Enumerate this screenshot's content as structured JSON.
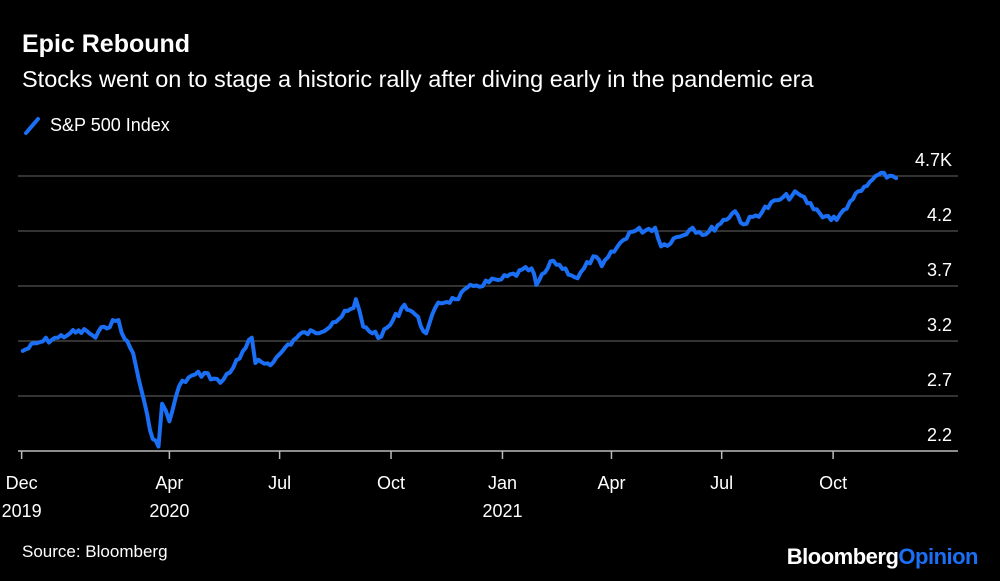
{
  "title": "Epic Rebound",
  "subtitle": "Stocks went on to stage a historic rally after diving early in the pandemic era",
  "source": "Source: Bloomberg",
  "brand": {
    "part1": "Bloomberg",
    "part2": "Opinion"
  },
  "colors": {
    "background": "#000000",
    "series": "#1a6ff5",
    "grid": "#666666"
  },
  "chart_data": {
    "type": "line",
    "title": "Epic Rebound",
    "subtitle": "Stocks went on to stage a historic rally after diving early in the pandemic era",
    "ylim": [
      2.2,
      4.7
    ],
    "y_ticks": [
      {
        "value": 4.7,
        "label": "4.7K"
      },
      {
        "value": 4.2,
        "label": "4.2"
      },
      {
        "value": 3.7,
        "label": "3.7"
      },
      {
        "value": 3.2,
        "label": "3.2"
      },
      {
        "value": 2.7,
        "label": "2.7"
      },
      {
        "value": 2.2,
        "label": "2.2"
      }
    ],
    "x_ticks": [
      {
        "date": "2019-12-01",
        "line1": "Dec",
        "line2": "2019"
      },
      {
        "date": "2020-04-01",
        "line1": "Apr",
        "line2": "2020"
      },
      {
        "date": "2020-07-01",
        "line1": "Jul",
        "line2": ""
      },
      {
        "date": "2020-10-01",
        "line1": "Oct",
        "line2": ""
      },
      {
        "date": "2021-01-01",
        "line1": "Jan",
        "line2": "2021"
      },
      {
        "date": "2021-04-01",
        "line1": "Apr",
        "line2": ""
      },
      {
        "date": "2021-07-01",
        "line1": "Jul",
        "line2": ""
      },
      {
        "date": "2021-10-01",
        "line1": "Oct",
        "line2": ""
      }
    ],
    "grid": true,
    "legend": "top-left",
    "series": [
      {
        "name": "S&P 500 Index",
        "color": "#1a6ff5",
        "points": [
          [
            "2019-12-02",
            3.11
          ],
          [
            "2019-12-16",
            3.19
          ],
          [
            "2019-12-31",
            3.23
          ],
          [
            "2020-01-10",
            3.27
          ],
          [
            "2020-01-24",
            3.29
          ],
          [
            "2020-01-31",
            3.23
          ],
          [
            "2020-02-07",
            3.33
          ],
          [
            "2020-02-19",
            3.39
          ],
          [
            "2020-02-24",
            3.22
          ],
          [
            "2020-03-02",
            3.09
          ],
          [
            "2020-03-09",
            2.75
          ],
          [
            "2020-03-16",
            2.39
          ],
          [
            "2020-03-23",
            2.24
          ],
          [
            "2020-03-26",
            2.63
          ],
          [
            "2020-04-01",
            2.47
          ],
          [
            "2020-04-09",
            2.79
          ],
          [
            "2020-04-17",
            2.87
          ],
          [
            "2020-04-30",
            2.91
          ],
          [
            "2020-05-13",
            2.82
          ],
          [
            "2020-05-29",
            3.04
          ],
          [
            "2020-06-08",
            3.23
          ],
          [
            "2020-06-11",
            3.0
          ],
          [
            "2020-06-26",
            3.01
          ],
          [
            "2020-07-08",
            3.17
          ],
          [
            "2020-07-22",
            3.28
          ],
          [
            "2020-07-31",
            3.27
          ],
          [
            "2020-08-14",
            3.37
          ],
          [
            "2020-08-31",
            3.5
          ],
          [
            "2020-09-02",
            3.58
          ],
          [
            "2020-09-08",
            3.33
          ],
          [
            "2020-09-23",
            3.24
          ],
          [
            "2020-10-12",
            3.53
          ],
          [
            "2020-10-21",
            3.44
          ],
          [
            "2020-10-30",
            3.27
          ],
          [
            "2020-11-09",
            3.55
          ],
          [
            "2020-11-23",
            3.58
          ],
          [
            "2020-12-08",
            3.7
          ],
          [
            "2020-12-31",
            3.76
          ],
          [
            "2021-01-25",
            3.86
          ],
          [
            "2021-01-29",
            3.71
          ],
          [
            "2021-02-12",
            3.93
          ],
          [
            "2021-03-04",
            3.77
          ],
          [
            "2021-03-17",
            3.97
          ],
          [
            "2021-03-24",
            3.88
          ],
          [
            "2021-04-16",
            4.19
          ],
          [
            "2021-05-07",
            4.23
          ],
          [
            "2021-05-12",
            4.06
          ],
          [
            "2021-06-07",
            4.23
          ],
          [
            "2021-06-18",
            4.17
          ],
          [
            "2021-07-12",
            4.38
          ],
          [
            "2021-07-19",
            4.26
          ],
          [
            "2021-08-16",
            4.48
          ],
          [
            "2021-09-02",
            4.54
          ],
          [
            "2021-09-20",
            4.36
          ],
          [
            "2021-10-04",
            4.3
          ],
          [
            "2021-10-15",
            4.47
          ],
          [
            "2021-10-29",
            4.61
          ],
          [
            "2021-11-05",
            4.7
          ],
          [
            "2021-11-19",
            4.7
          ],
          [
            "2021-11-22",
            4.68
          ]
        ]
      }
    ]
  }
}
